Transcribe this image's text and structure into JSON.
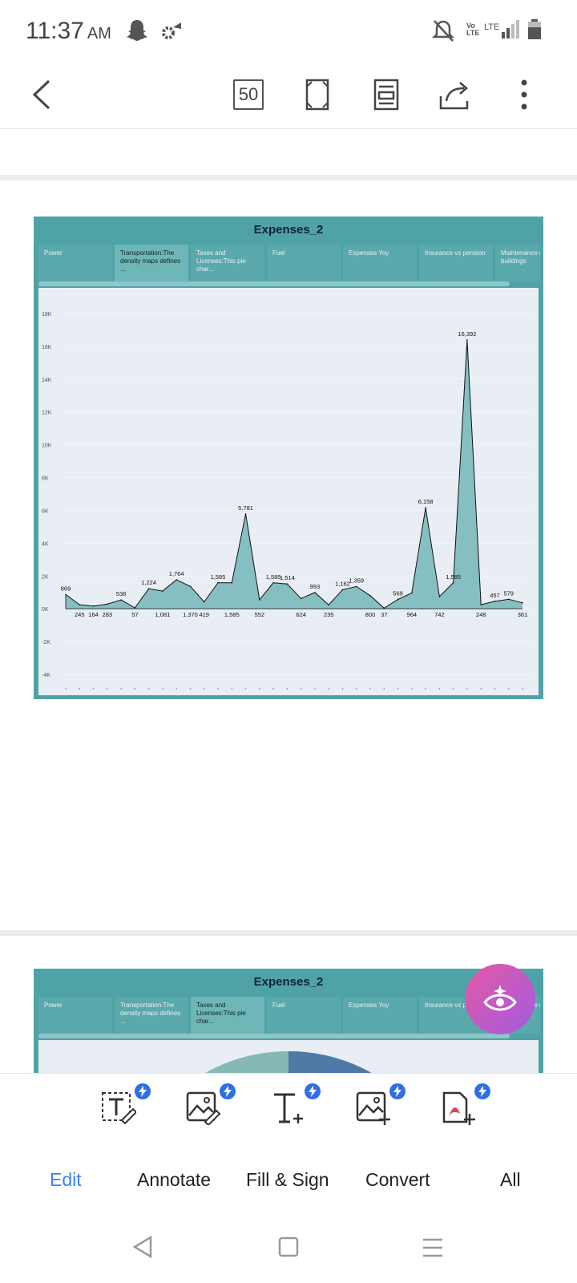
{
  "status_bar": {
    "time": "11:37",
    "ampm": "AM",
    "signal_text_1": "Vo",
    "signal_text_2": "LTE",
    "lte_text": "LTE"
  },
  "toolbar": {
    "page_count": "50"
  },
  "reports": [
    {
      "title": "Expenses_2",
      "tabs": [
        "Power",
        "Transportation:The density maps defines ...",
        "Taxes and Licenses:This pie char...",
        "Fuel",
        "Expenses Yoy",
        "Insurance vs pension",
        "Maintenance of buildings"
      ],
      "active_tab": 1
    },
    {
      "title": "Expenses_2",
      "tabs": [
        "Power",
        "Transportation:The density maps defines ...",
        "Taxes and Licenses:This pie char...",
        "Fuel",
        "Expenses Yoy",
        "Insurance vs pension",
        "Maintenance of buildings"
      ],
      "active_tab": 2
    }
  ],
  "chart_data": {
    "type": "area",
    "ylim": [
      -4000,
      18000
    ],
    "yticks": [
      "-4K",
      "-2K",
      "0K",
      "2K",
      "4K",
      "6K",
      "8K",
      "10K",
      "12K",
      "14K",
      "16K",
      "18K"
    ],
    "ytick_values": [
      -4000,
      -2000,
      0,
      2000,
      4000,
      6000,
      8000,
      10000,
      12000,
      14000,
      16000,
      18000
    ],
    "values": [
      869,
      245,
      164,
      283,
      538,
      57,
      1224,
      1081,
      1764,
      1370,
      419,
      1585,
      1585,
      5781,
      552,
      1585,
      1514,
      624,
      993,
      235,
      1162,
      1359,
      800,
      37,
      569,
      964,
      6158,
      742,
      1585,
      16392,
      248,
      457,
      579,
      361
    ],
    "labels": [
      "869",
      "245",
      "164",
      "283",
      "538",
      "57",
      "1,224",
      "1,081",
      "1,764",
      "1,370",
      "419",
      "1,585",
      "1,585",
      "5,781",
      "552",
      "1,585",
      "1,514",
      "624",
      "993",
      "235",
      "1,162",
      "1,359",
      "800",
      "37",
      "569",
      "964",
      "6,158",
      "742",
      "1,585",
      "16,392",
      "248",
      "457",
      "579",
      "361"
    ],
    "label_below": [
      false,
      true,
      true,
      true,
      false,
      true,
      false,
      true,
      false,
      true,
      true,
      false,
      true,
      false,
      true,
      false,
      false,
      true,
      false,
      true,
      false,
      false,
      true,
      true,
      false,
      true,
      false,
      true,
      false,
      false,
      true,
      false,
      false,
      true
    ],
    "fill_color": "#86bfc2",
    "line_color": "#111111"
  },
  "bottom_tools": [
    {
      "name": "edit-text-tool"
    },
    {
      "name": "edit-image-tool"
    },
    {
      "name": "add-text-tool"
    },
    {
      "name": "add-image-tool"
    },
    {
      "name": "add-page-tool"
    }
  ],
  "mode_tabs": {
    "edit": "Edit",
    "annotate": "Annotate",
    "fill_sign": "Fill & Sign",
    "convert": "Convert",
    "all": "All"
  },
  "colors": {
    "accent": "#3b82f6",
    "bolt": "#2f6fe4",
    "report_frame": "#4fa3a6"
  }
}
